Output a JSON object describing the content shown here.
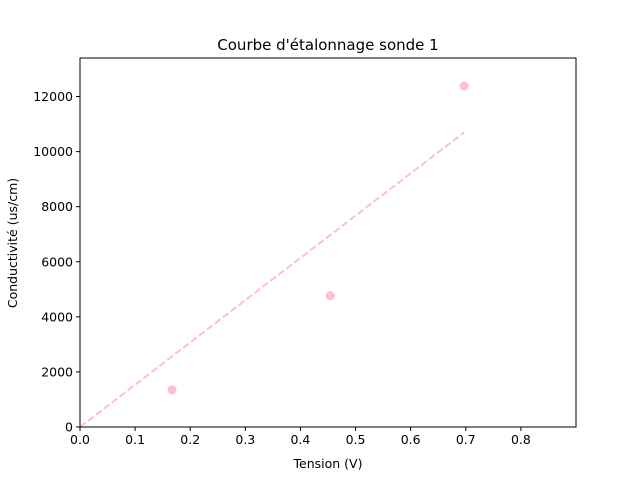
{
  "chart_data": {
    "type": "scatter",
    "title": "Courbe d'étalonnage sonde 1",
    "xlabel": "Tension (V)",
    "ylabel": "Conductivité (us/cm)",
    "xlim": [
      0,
      0.9
    ],
    "ylim": [
      0,
      13400
    ],
    "xticks": [
      0.0,
      0.1,
      0.2,
      0.3,
      0.4,
      0.5,
      0.6,
      0.7,
      0.8
    ],
    "xtick_labels": [
      "0.0",
      "0.1",
      "0.2",
      "0.3",
      "0.4",
      "0.5",
      "0.6",
      "0.7",
      "0.8"
    ],
    "yticks": [
      0,
      2000,
      4000,
      6000,
      8000,
      10000,
      12000
    ],
    "ytick_labels": [
      "0",
      "2000",
      "4000",
      "6000",
      "8000",
      "10000",
      "12000"
    ],
    "grid": false,
    "series": [
      {
        "kind": "scatter",
        "color": "#ffc0cb",
        "x": [
          0.167,
          0.454,
          0.697
        ],
        "y": [
          1350,
          4770,
          12380
        ]
      },
      {
        "kind": "line",
        "style": "dashed",
        "color": "#ffc0cb",
        "x": [
          0.0,
          0.697
        ],
        "y": [
          0,
          10700
        ]
      }
    ]
  }
}
